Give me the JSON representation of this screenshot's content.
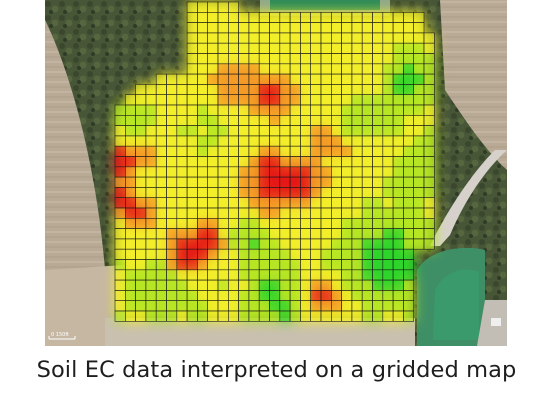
{
  "caption": "Soil EC data interpreted on a gridded map",
  "scale_bar_label": "0 150ft",
  "legend_colors": {
    "low": "#2ed62a",
    "low_mid": "#b6e624",
    "mid": "#f3ee29",
    "mid_high": "#f49a26",
    "high": "#e51818"
  },
  "background_colors": {
    "forest": "#4c5a3a",
    "field": "#b7a894",
    "pond": "#3f8f66",
    "road": "#d8d5cf"
  }
}
